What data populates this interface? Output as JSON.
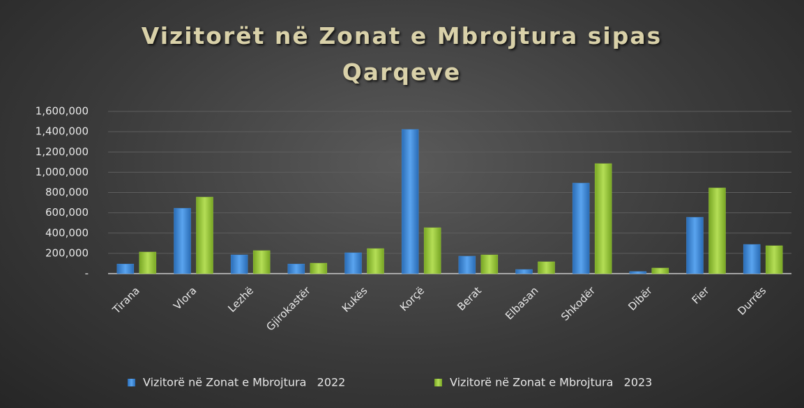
{
  "chart_data": {
    "type": "bar",
    "title": "Vizitorët në Zonat e Mbrojtura sipas Qarqeve",
    "categories": [
      "Tirana",
      "Vlora",
      "Lezhë",
      "Gjirokastër",
      "Kukës",
      "Korçë",
      "Berat",
      "Elbasan",
      "Shkodër",
      "Dibër",
      "Fier",
      "Durrës"
    ],
    "series": [
      {
        "name": "Vizitorë në Zonat e Mbrojtura   2022",
        "color": "#3f8ad8",
        "values": [
          95000,
          645000,
          185000,
          95000,
          206000,
          1422000,
          172000,
          41000,
          893000,
          21000,
          556000,
          288000
        ]
      },
      {
        "name": "Vizitorë në Zonat e Mbrojtura   2023",
        "color": "#99c93a",
        "values": [
          213000,
          755000,
          227000,
          103000,
          247000,
          453000,
          185000,
          117000,
          1085000,
          55000,
          845000,
          275000
        ]
      }
    ],
    "ylim": [
      0,
      1600000
    ],
    "yticks": [
      {
        "value": 0,
        "label": "-"
      },
      {
        "value": 200000,
        "label": "200,000"
      },
      {
        "value": 400000,
        "label": "400,000"
      },
      {
        "value": 600000,
        "label": "600,000"
      },
      {
        "value": 800000,
        "label": "800,000"
      },
      {
        "value": 1000000,
        "label": "1,000,000"
      },
      {
        "value": 1200000,
        "label": "1,200,000"
      },
      {
        "value": 1400000,
        "label": "1,400,000"
      },
      {
        "value": 1600000,
        "label": "1,600,000"
      }
    ],
    "grid": true,
    "legend": "bottom"
  }
}
